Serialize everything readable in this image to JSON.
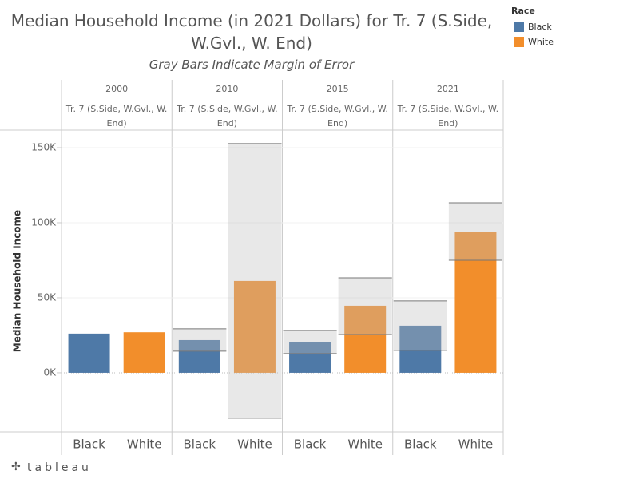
{
  "chart_data": {
    "type": "bar",
    "title": "Median Household Income (in 2021 Dollars) for Tr. 7 (S.Side, W.Gvl., W. End)",
    "subtitle": "Gray Bars Indicate Margin of Error",
    "y_label": "Median Household Income",
    "tract": "Tr. 7 (S.Side, W.Gvl., W. End)",
    "categories": [
      "2000",
      "2010",
      "2015",
      "2021"
    ],
    "legend_title": "Race",
    "series": [
      {
        "name": "Black",
        "color": "#4e79a7",
        "values": [
          26100,
          21800,
          20200,
          31400
        ],
        "moe_lower": [
          null,
          14400,
          12800,
          14900
        ],
        "moe_upper": [
          null,
          29300,
          28200,
          47900
        ]
      },
      {
        "name": "White",
        "color": "#f28e2b",
        "values": [
          27000,
          61200,
          44700,
          94100
        ],
        "moe_lower": [
          null,
          -30300,
          25500,
          75000
        ],
        "moe_upper": [
          null,
          152700,
          63300,
          113300
        ]
      }
    ],
    "ylim": [
      -39400,
      161700
    ],
    "yticks": [
      {
        "value": 0,
        "label": "0K"
      },
      {
        "value": 50000,
        "label": "50K"
      },
      {
        "value": 100000,
        "label": "100K"
      },
      {
        "value": 150000,
        "label": "150K"
      }
    ],
    "grid": true,
    "footer": "tableau"
  }
}
